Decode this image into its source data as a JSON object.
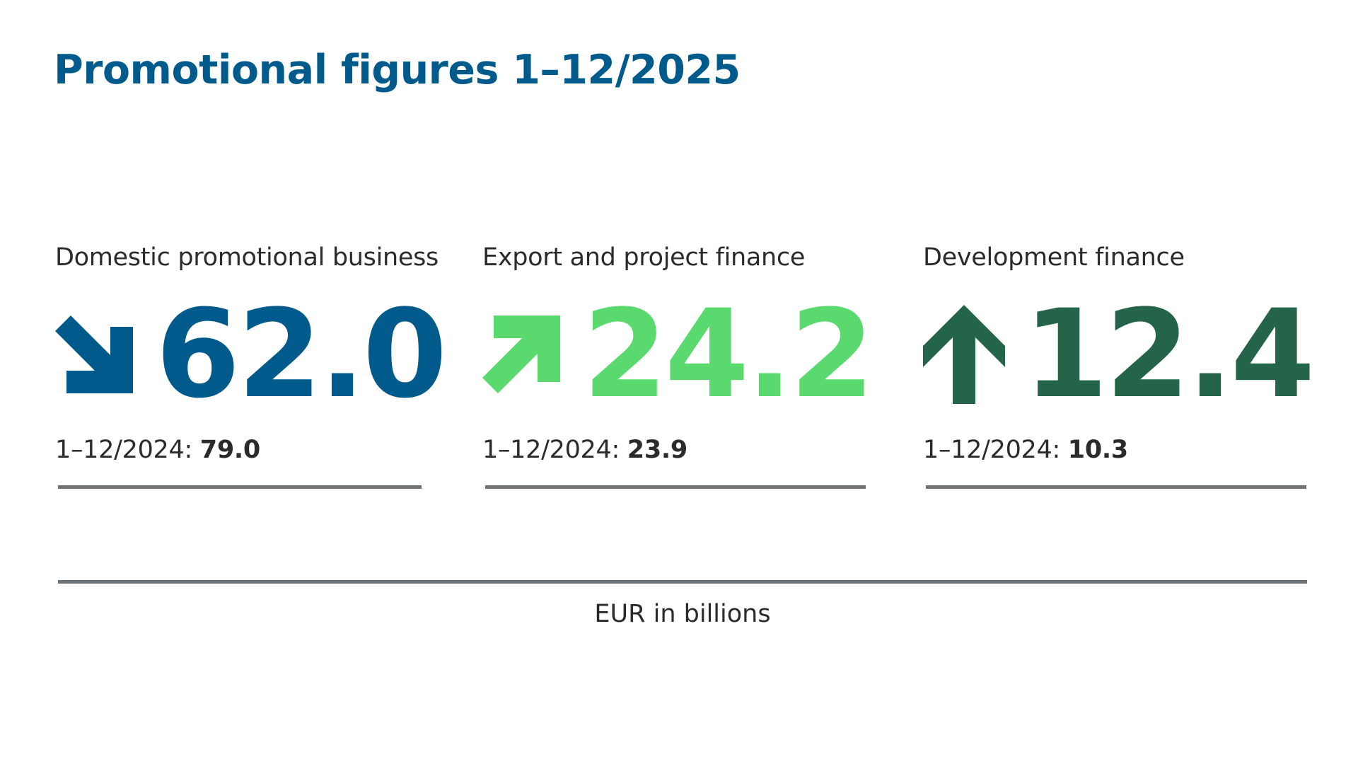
{
  "title": "Promotional figures 1–12/2025",
  "unit_label": "EUR in billions",
  "previous_period_label": "1–12/2024:",
  "colors": {
    "title": "#005a8c",
    "domestic": "#005a8c",
    "export": "#5ad96f",
    "development": "#24654a",
    "rule": "#6e7377"
  },
  "columns": [
    {
      "label": "Domestic promotional business",
      "trend_icon": "arrow-down-right-icon",
      "value": "62.0",
      "previous_value": "79.0"
    },
    {
      "label": "Export and project finance",
      "trend_icon": "arrow-up-right-icon",
      "value": "24.2",
      "previous_value": "23.9"
    },
    {
      "label": "Development finance",
      "trend_icon": "arrow-up-icon",
      "value": "12.4",
      "previous_value": "10.3"
    }
  ]
}
